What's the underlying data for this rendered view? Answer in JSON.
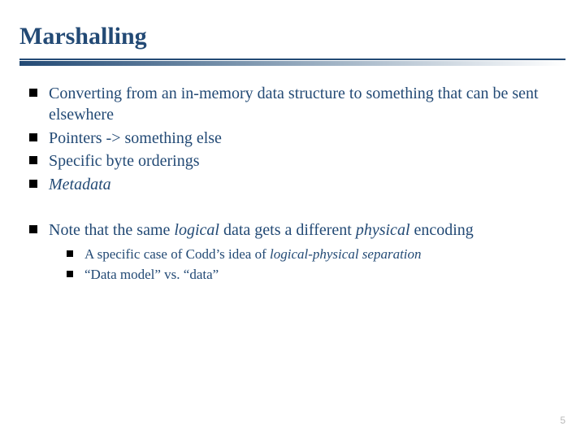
{
  "colors": {
    "heading": "#234a75",
    "body": "#234a75",
    "bullet": "#000000",
    "pagenum": "#b9b9b9",
    "rule_top": "#234a75",
    "rule_gradient_from": "#234a75",
    "rule_gradient_to": "#ffffff",
    "background": "#ffffff"
  },
  "typography": {
    "title_size_pt": 30,
    "body_size_pt": 20,
    "sub_size_pt": 17,
    "font_family": "Georgia / serif"
  },
  "title": "Marshalling",
  "bullets_group1": {
    "b0": "Converting from an in-memory data structure to something that can be sent elsewhere",
    "b1": "Pointers -> something else",
    "b2": "Specific byte orderings",
    "b3": "Metadata"
  },
  "bullets_group2": {
    "b0_pre": "Note that the same ",
    "b0_em1": "logical ",
    "b0_mid": " data gets a different ",
    "b0_em2": "physical ",
    "b0_post": " encoding",
    "sub0_pre": "A specific case of Codd’s idea of ",
    "sub0_em": "logical-physical separation",
    "sub1": "“Data model” vs. “data”"
  },
  "page_number": "5"
}
